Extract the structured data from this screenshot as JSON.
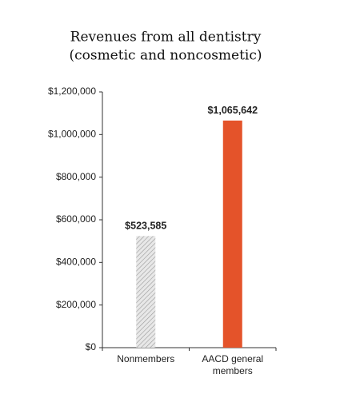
{
  "chart_data": {
    "type": "bar",
    "title": [
      "Revenues from all dentistry",
      "(cosmetic and noncosmetic)"
    ],
    "categories": [
      "Nonmembers",
      "AACD general members"
    ],
    "values": [
      523585,
      1065642
    ],
    "value_labels": [
      "$523,585",
      "$1,065,642"
    ],
    "colors": [
      "#d6d6d6",
      "#e4532a"
    ],
    "hatch": [
      true,
      false
    ],
    "ylim": [
      0,
      1200000
    ],
    "yticks": [
      {
        "value": 0,
        "label": "$0"
      },
      {
        "value": 200000,
        "label": "$200,000"
      },
      {
        "value": 400000,
        "label": "$400,000"
      },
      {
        "value": 600000,
        "label": "$600,000"
      },
      {
        "value": 800000,
        "label": "$800,000"
      },
      {
        "value": 1000000,
        "label": "$1,000,000"
      },
      {
        "value": 1200000,
        "label": "$1,200,000"
      }
    ]
  }
}
